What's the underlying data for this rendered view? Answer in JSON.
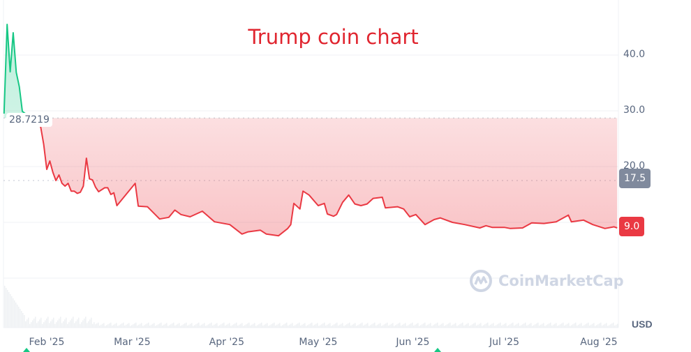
{
  "chart_data": {
    "type": "area",
    "title": "Trump coin chart",
    "currency": "USD",
    "y_ticks": [
      "40.0",
      "30.0",
      "20.0"
    ],
    "ylim": [
      0,
      50
    ],
    "grid": true,
    "x_ticks": [
      {
        "label": "Feb '25",
        "date": "2025-02-01"
      },
      {
        "label": "Mar '25",
        "date": "2025-03-01"
      },
      {
        "label": "Apr '25",
        "date": "2025-04-01"
      },
      {
        "label": "May '25",
        "date": "2025-05-01"
      },
      {
        "label": "Jun '25",
        "date": "2025-06-01"
      },
      {
        "label": "Jul '25",
        "date": "2025-07-01"
      },
      {
        "label": "Aug '25",
        "date": "2025-08-01"
      }
    ],
    "baseline": {
      "value": 28.7219,
      "label": "28.7219"
    },
    "reference": {
      "value": 17.5,
      "label": "17.5"
    },
    "current": {
      "value": 9.0,
      "label": "9.0"
    },
    "colors": {
      "up": "#16c784",
      "down": "#ea3943",
      "reference": "#808a9d",
      "title": "#e0252f"
    },
    "watermark": "CoinMarketCap",
    "series": [
      {
        "points": [
          [
            "2025-01-18",
            29.5
          ],
          [
            "2025-01-19",
            45.5
          ],
          [
            "2025-01-20",
            37
          ],
          [
            "2025-01-21",
            44
          ],
          [
            "2025-01-22",
            36.9
          ],
          [
            "2025-01-23",
            34.3
          ],
          [
            "2025-01-24",
            29.9
          ],
          [
            "2025-01-27",
            28.7
          ],
          [
            "2025-01-30",
            27.1
          ],
          [
            "2025-01-31",
            24
          ],
          [
            "2025-02-01",
            19.5
          ],
          [
            "2025-02-02",
            21
          ],
          [
            "2025-02-03",
            19
          ],
          [
            "2025-02-04",
            17.5
          ],
          [
            "2025-02-05",
            18.5
          ],
          [
            "2025-02-06",
            17
          ],
          [
            "2025-02-07",
            16.5
          ],
          [
            "2025-02-08",
            17
          ],
          [
            "2025-02-09",
            15.6
          ],
          [
            "2025-02-10",
            15.6
          ],
          [
            "2025-02-11",
            15.2
          ],
          [
            "2025-02-12",
            15.4
          ],
          [
            "2025-02-13",
            16.5
          ],
          [
            "2025-02-14",
            21.5
          ],
          [
            "2025-02-15",
            17.8
          ],
          [
            "2025-02-16",
            17.6
          ],
          [
            "2025-02-17",
            16.3
          ],
          [
            "2025-02-18",
            15.5
          ],
          [
            "2025-02-20",
            16.2
          ],
          [
            "2025-02-21",
            16.2
          ],
          [
            "2025-02-22",
            15
          ],
          [
            "2025-02-23",
            15.3
          ],
          [
            "2025-02-24",
            13
          ],
          [
            "2025-03-02",
            17
          ],
          [
            "2025-03-03",
            12.9
          ],
          [
            "2025-03-06",
            12.8
          ],
          [
            "2025-03-10",
            10.6
          ],
          [
            "2025-03-13",
            10.9
          ],
          [
            "2025-03-15",
            12.2
          ],
          [
            "2025-03-17",
            11.4
          ],
          [
            "2025-03-20",
            11
          ],
          [
            "2025-03-24",
            12
          ],
          [
            "2025-03-28",
            10.1
          ],
          [
            "2025-04-02",
            9.6
          ],
          [
            "2025-04-06",
            7.9
          ],
          [
            "2025-04-08",
            8.3
          ],
          [
            "2025-04-12",
            8.6
          ],
          [
            "2025-04-14",
            7.9
          ],
          [
            "2025-04-18",
            7.6
          ],
          [
            "2025-04-21",
            8.9
          ],
          [
            "2025-04-22",
            9.6
          ],
          [
            "2025-04-23",
            13.4
          ],
          [
            "2025-04-25",
            12.4
          ],
          [
            "2025-04-26",
            15.6
          ],
          [
            "2025-04-28",
            14.9
          ],
          [
            "2025-05-01",
            13
          ],
          [
            "2025-05-03",
            13.4
          ],
          [
            "2025-05-04",
            11.5
          ],
          [
            "2025-05-06",
            11.1
          ],
          [
            "2025-05-07",
            11.4
          ],
          [
            "2025-05-09",
            13.6
          ],
          [
            "2025-05-11",
            14.9
          ],
          [
            "2025-05-13",
            13.3
          ],
          [
            "2025-05-15",
            13
          ],
          [
            "2025-05-17",
            13.3
          ],
          [
            "2025-05-19",
            14.3
          ],
          [
            "2025-05-22",
            14.5
          ],
          [
            "2025-05-23",
            12.6
          ],
          [
            "2025-05-27",
            12.8
          ],
          [
            "2025-05-29",
            12.4
          ],
          [
            "2025-05-31",
            11
          ],
          [
            "2025-06-02",
            11.4
          ],
          [
            "2025-06-05",
            9.6
          ],
          [
            "2025-06-08",
            10.5
          ],
          [
            "2025-06-10",
            10.8
          ],
          [
            "2025-06-14",
            10
          ],
          [
            "2025-06-18",
            9.6
          ],
          [
            "2025-06-23",
            9
          ],
          [
            "2025-06-25",
            9.4
          ],
          [
            "2025-06-27",
            9.1
          ],
          [
            "2025-07-01",
            9.1
          ],
          [
            "2025-07-03",
            8.9
          ],
          [
            "2025-07-07",
            9
          ],
          [
            "2025-07-10",
            9.9
          ],
          [
            "2025-07-14",
            9.8
          ],
          [
            "2025-07-18",
            10.1
          ],
          [
            "2025-07-22",
            11.3
          ],
          [
            "2025-07-23",
            10.1
          ],
          [
            "2025-07-27",
            10.4
          ],
          [
            "2025-07-30",
            9.6
          ],
          [
            "2025-08-03",
            8.9
          ],
          [
            "2025-08-06",
            9.2
          ],
          [
            "2025-08-07",
            9.0
          ]
        ]
      }
    ]
  }
}
